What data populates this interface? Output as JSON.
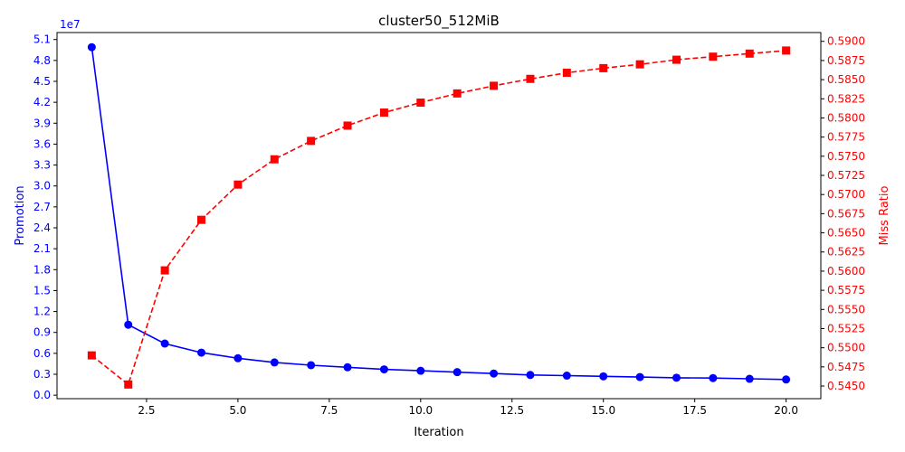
{
  "chart_data": {
    "type": "line",
    "title": "cluster50_512MiB",
    "xlabel": "Iteration",
    "xlim": [
      0.05,
      20.95
    ],
    "x_ticks": [
      2.5,
      5.0,
      7.5,
      10.0,
      12.5,
      15.0,
      17.5,
      20.0
    ],
    "x_tick_labels": [
      "2.5",
      "5.0",
      "7.5",
      "10.0",
      "12.5",
      "15.0",
      "17.5",
      "20.0"
    ],
    "x": [
      1,
      2,
      3,
      4,
      5,
      6,
      7,
      8,
      9,
      10,
      11,
      12,
      13,
      14,
      15,
      16,
      17,
      18,
      19,
      20
    ],
    "left_axis": {
      "label": "Promotion",
      "color": "#0000ff",
      "multiplier_label": "1e7",
      "ylim": [
        -0.05,
        5.2
      ],
      "ticks": [
        0.0,
        0.3,
        0.6,
        0.9,
        1.2,
        1.5,
        1.8,
        2.1,
        2.4,
        2.7,
        3.0,
        3.3,
        3.6,
        3.9,
        4.2,
        4.5,
        4.8,
        5.1
      ],
      "tick_labels": [
        "0.0",
        "0.3",
        "0.6",
        "0.9",
        "1.2",
        "1.5",
        "1.8",
        "2.1",
        "2.4",
        "2.7",
        "3.0",
        "3.3",
        "3.6",
        "3.9",
        "4.2",
        "4.5",
        "4.8",
        "5.1"
      ]
    },
    "right_axis": {
      "label": "Miss Ratio",
      "color": "#ff0000",
      "ylim": [
        0.54335,
        0.59115
      ],
      "ticks": [
        0.545,
        0.5475,
        0.55,
        0.5525,
        0.555,
        0.5575,
        0.56,
        0.5625,
        0.565,
        0.5675,
        0.57,
        0.5725,
        0.575,
        0.5775,
        0.58,
        0.5825,
        0.585,
        0.5875,
        0.59
      ],
      "tick_labels": [
        "0.5450",
        "0.5475",
        "0.5500",
        "0.5525",
        "0.5550",
        "0.5575",
        "0.5600",
        "0.5625",
        "0.5650",
        "0.5675",
        "0.5700",
        "0.5725",
        "0.5750",
        "0.5775",
        "0.5800",
        "0.5825",
        "0.5850",
        "0.5875",
        "0.5900"
      ]
    },
    "series": [
      {
        "name": "Promotion",
        "axis": "left",
        "color": "#0000ff",
        "linestyle": "solid",
        "marker": "circle",
        "values": [
          4.99,
          1.01,
          0.74,
          0.61,
          0.53,
          0.47,
          0.43,
          0.4,
          0.37,
          0.35,
          0.33,
          0.31,
          0.29,
          0.28,
          0.27,
          0.26,
          0.25,
          0.245,
          0.235,
          0.225
        ]
      },
      {
        "name": "Miss Ratio",
        "axis": "right",
        "color": "#ff0000",
        "linestyle": "dashed",
        "marker": "square",
        "values": [
          0.549,
          0.5452,
          0.5601,
          0.5667,
          0.5713,
          0.5746,
          0.577,
          0.579,
          0.5807,
          0.582,
          0.5832,
          0.5842,
          0.5851,
          0.5859,
          0.5865,
          0.587,
          0.5876,
          0.588,
          0.5884,
          0.5888
        ]
      }
    ]
  }
}
